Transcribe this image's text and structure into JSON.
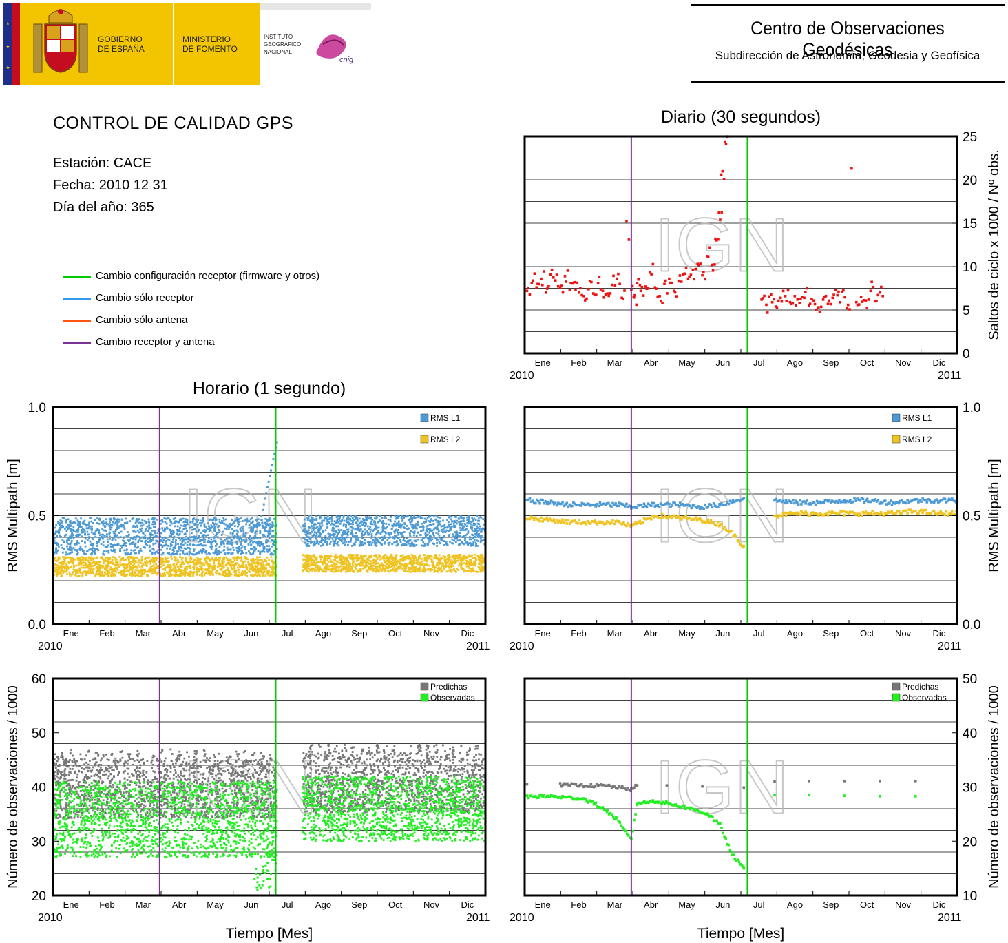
{
  "header": {
    "gov_line1": "GOBIERNO",
    "gov_line2": "DE ESPAÑA",
    "ministry_line1": "MINISTERIO",
    "ministry_line2": "DE FOMENTO",
    "ign_line1": "INSTITUTO",
    "ign_line2": "GEOGRÁFICO",
    "ign_line3": "NACIONAL",
    "cnig_text": "cnig",
    "center_name": "Centro de Observaciones Geodésicas",
    "center_subtitle": "Subdirección de Astronomía, Geodesia y Geofísica"
  },
  "report": {
    "title": "CONTROL DE CALIDAD GPS",
    "station": "Estación: CACE",
    "date": "Fecha: 2010 12 31",
    "doy": "Día del año: 365"
  },
  "legend": [
    {
      "label": "Cambio configuración receptor (firmware y otros)",
      "color": "#00cc00"
    },
    {
      "label": "Cambio sólo receptor",
      "color": "#3399ee"
    },
    {
      "label": "Cambio sólo antena",
      "color": "#ff5511"
    },
    {
      "label": "Cambio receptor y antena",
      "color": "#7b3294"
    }
  ],
  "watermark": "IGN",
  "axis_common": {
    "months": [
      "Ene",
      "Feb",
      "Mar",
      "Abr",
      "May",
      "Jun",
      "Jul",
      "Ago",
      "Sep",
      "Oct",
      "Nov",
      "Dic"
    ],
    "year_start": "2010",
    "year_end": "2011",
    "event_lines": [
      {
        "type": "receptor y antena",
        "doy": 90,
        "color": "#7b3294"
      },
      {
        "type": "configuración receptor",
        "doy": 188,
        "color": "#00cc00"
      }
    ]
  },
  "colors": {
    "cycle_slips": "#ee1111",
    "rms_l1": "#4d9ad4",
    "rms_l2": "#eec322",
    "predichas": "#777777",
    "observadas": "#22ee22"
  },
  "chart_data": [
    {
      "id": "cycle-slips-daily",
      "type": "scatter",
      "title": "Diario (30 segundos)",
      "ylabel": "Saltos de ciclo x 1000 / Nº obs.",
      "xlabel": "",
      "ylim": [
        0,
        25
      ],
      "yticks": [
        "0",
        "5",
        "10",
        "15",
        "20",
        "25"
      ],
      "grid": true,
      "series": [
        {
          "points_doy_value": [
            [
              2,
              7.2
            ],
            [
              6,
              8.1
            ],
            [
              10,
              7.6
            ],
            [
              14,
              8.6
            ],
            [
              18,
              7.0
            ],
            [
              22,
              9.1
            ],
            [
              26,
              8.4
            ],
            [
              30,
              7.6
            ],
            [
              34,
              8.9
            ],
            [
              38,
              7.3
            ],
            [
              42,
              8.2
            ],
            [
              46,
              7.0
            ],
            [
              50,
              6.6
            ],
            [
              54,
              7.4
            ],
            [
              58,
              6.9
            ],
            [
              62,
              8.1
            ],
            [
              66,
              7.2
            ],
            [
              70,
              6.9
            ],
            [
              74,
              7.9
            ],
            [
              78,
              8.6
            ],
            [
              82,
              6.4
            ],
            [
              86,
              15.2
            ],
            [
              88,
              13.1
            ],
            [
              90,
              7.3
            ],
            [
              92,
              6.5
            ],
            [
              95,
              8.1
            ],
            [
              98,
              7.2
            ],
            [
              102,
              7.7
            ],
            [
              106,
              9.3
            ],
            [
              110,
              7.6
            ],
            [
              114,
              6.6
            ],
            [
              118,
              8.0
            ],
            [
              122,
              8.6
            ],
            [
              126,
              7.2
            ],
            [
              130,
              8.3
            ],
            [
              134,
              9.1
            ],
            [
              138,
              8.6
            ],
            [
              142,
              9.6
            ],
            [
              146,
              10.3
            ],
            [
              150,
              9.0
            ],
            [
              154,
              11.2
            ],
            [
              158,
              10.2
            ],
            [
              161,
              13.2
            ],
            [
              164,
              16.2
            ],
            [
              166,
              20.6
            ],
            [
              169,
              24.4
            ],
            [
              200,
              6.2
            ],
            [
              204,
              5.6
            ],
            [
              208,
              6.8
            ],
            [
              212,
              5.4
            ],
            [
              216,
              6.4
            ],
            [
              220,
              6.6
            ],
            [
              224,
              5.9
            ],
            [
              228,
              6.6
            ],
            [
              232,
              5.8
            ],
            [
              236,
              6.4
            ],
            [
              240,
              5.5
            ],
            [
              244,
              6.1
            ],
            [
              248,
              5.3
            ],
            [
              252,
              6.2
            ],
            [
              256,
              5.7
            ],
            [
              260,
              6.4
            ],
            [
              264,
              6.7
            ],
            [
              268,
              7.1
            ],
            [
              272,
              5.2
            ],
            [
              276,
              21.3
            ],
            [
              280,
              5.9
            ],
            [
              284,
              6.5
            ],
            [
              288,
              6.1
            ],
            [
              292,
              7.2
            ],
            [
              296,
              6.0
            ],
            [
              300,
              7.0
            ]
          ]
        }
      ]
    },
    {
      "id": "rms-hourly",
      "type": "scatter",
      "title": "Horario (1 segundo)",
      "ylabel": "RMS Multipath [m]",
      "xlabel": "",
      "ylim": [
        0.0,
        1.0
      ],
      "yticks": [
        "0.0",
        "0.5",
        "1.0"
      ],
      "grid": true,
      "legend_position": "top-right",
      "series": [
        {
          "name": "RMS L1",
          "segments": [
            {
              "doy": [
                0,
                189
              ],
              "low": 0.32,
              "high": 0.49,
              "mean": 0.4
            },
            {
              "doy": [
                211,
                365
              ],
              "low": 0.36,
              "high": 0.5,
              "mean": 0.42
            }
          ],
          "peak": 0.87
        },
        {
          "name": "RMS L2",
          "segments": [
            {
              "doy": [
                0,
                189
              ],
              "low": 0.22,
              "high": 0.31,
              "mean": 0.26
            },
            {
              "doy": [
                211,
                365
              ],
              "low": 0.24,
              "high": 0.32,
              "mean": 0.28
            }
          ]
        }
      ]
    },
    {
      "id": "rms-daily",
      "type": "scatter",
      "title": "",
      "ylabel": "RMS Multipath [m]",
      "xlabel": "",
      "ylim": [
        0.0,
        1.0
      ],
      "yticks": [
        "0.0",
        "0.5",
        "1.0"
      ],
      "grid": true,
      "legend_position": "top-right",
      "series": [
        {
          "name": "RMS L1",
          "points_doy_value": [
            [
              2,
              0.57
            ],
            [
              20,
              0.56
            ],
            [
              40,
              0.55
            ],
            [
              60,
              0.55
            ],
            [
              80,
              0.55
            ],
            [
              90,
              0.54
            ],
            [
              110,
              0.55
            ],
            [
              130,
              0.55
            ],
            [
              150,
              0.54
            ],
            [
              165,
              0.55
            ],
            [
              185,
              0.58
            ],
            [
              211,
              0.57
            ],
            [
              230,
              0.56
            ],
            [
              250,
              0.56
            ],
            [
              270,
              0.57
            ],
            [
              290,
              0.57
            ],
            [
              310,
              0.56
            ],
            [
              330,
              0.57
            ],
            [
              350,
              0.57
            ],
            [
              365,
              0.57
            ]
          ]
        },
        {
          "name": "RMS L2",
          "points_doy_value": [
            [
              2,
              0.49
            ],
            [
              20,
              0.48
            ],
            [
              40,
              0.47
            ],
            [
              60,
              0.47
            ],
            [
              80,
              0.47
            ],
            [
              90,
              0.45
            ],
            [
              110,
              0.5
            ],
            [
              130,
              0.49
            ],
            [
              150,
              0.48
            ],
            [
              165,
              0.46
            ],
            [
              175,
              0.42
            ],
            [
              185,
              0.36
            ],
            [
              211,
              0.5
            ],
            [
              230,
              0.51
            ],
            [
              250,
              0.51
            ],
            [
              270,
              0.51
            ],
            [
              290,
              0.51
            ],
            [
              310,
              0.51
            ],
            [
              330,
              0.52
            ],
            [
              350,
              0.51
            ],
            [
              365,
              0.51
            ]
          ]
        }
      ]
    },
    {
      "id": "obs-hourly",
      "type": "scatter",
      "title": "",
      "ylabel": "Número de observaciones / 1000",
      "xlabel": "Tiempo [Mes]",
      "ylim": [
        20,
        60
      ],
      "yticks": [
        "20",
        "30",
        "40",
        "50",
        "60"
      ],
      "grid": true,
      "legend_position": "top-right",
      "series": [
        {
          "name": "Predichas",
          "segments": [
            {
              "doy": [
                0,
                189
              ],
              "low": 32,
              "high": 47
            },
            {
              "doy": [
                211,
                365
              ],
              "low": 33,
              "high": 48
            }
          ]
        },
        {
          "name": "Observadas",
          "segments": [
            {
              "doy": [
                0,
                189
              ],
              "low": 27,
              "high": 41
            },
            {
              "doy": [
                211,
                365
              ],
              "low": 30,
              "high": 42
            }
          ]
        }
      ]
    },
    {
      "id": "obs-daily",
      "type": "scatter",
      "title": "",
      "ylabel": "Número de observaciones / 1000",
      "xlabel": "Tiempo [Mes]",
      "ylim": [
        10,
        50
      ],
      "yticks": [
        "10",
        "20",
        "30",
        "40",
        "50"
      ],
      "grid": true,
      "legend_position": "top-right",
      "series": [
        {
          "name": "Predichas",
          "points_doy_value": [
            [
              2,
              30.5
            ],
            [
              30,
              30.4
            ],
            [
              50,
              30.3
            ],
            [
              70,
              30.2
            ],
            [
              80,
              29.9
            ],
            [
              90,
              29.5
            ],
            [
              95,
              30.3
            ],
            [
              120,
              30.3
            ],
            [
              150,
              30.1
            ],
            [
              185,
              29.9
            ],
            [
              211,
              31.0
            ],
            [
              240,
              31.1
            ],
            [
              270,
              31.1
            ],
            [
              300,
              31.1
            ],
            [
              330,
              31.1
            ],
            [
              365,
              31.2
            ]
          ]
        },
        {
          "name": "Observadas",
          "points_doy_value": [
            [
              2,
              28.2
            ],
            [
              20,
              28.3
            ],
            [
              40,
              28.0
            ],
            [
              50,
              27.8
            ],
            [
              60,
              26.8
            ],
            [
              70,
              25.5
            ],
            [
              78,
              24.0
            ],
            [
              84,
              22.0
            ],
            [
              90,
              20.5
            ],
            [
              95,
              27.0
            ],
            [
              110,
              27.4
            ],
            [
              125,
              26.8
            ],
            [
              140,
              26.0
            ],
            [
              155,
              25.0
            ],
            [
              165,
              23.0
            ],
            [
              175,
              17.5
            ],
            [
              185,
              15.0
            ],
            [
              211,
              28.5
            ],
            [
              240,
              28.5
            ],
            [
              270,
              28.4
            ],
            [
              300,
              28.3
            ],
            [
              330,
              28.3
            ],
            [
              365,
              28.4
            ]
          ]
        }
      ]
    }
  ]
}
